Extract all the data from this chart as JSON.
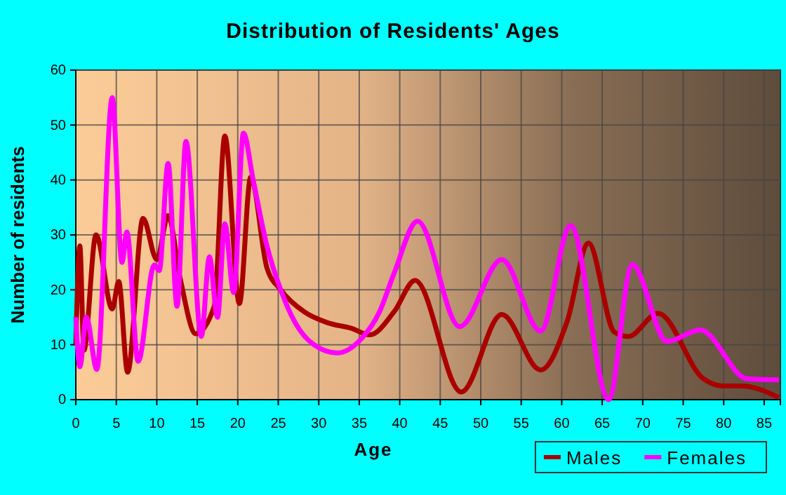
{
  "chart_data": {
    "type": "line",
    "title": "Distribution of Residents' Ages",
    "xlabel": "Age",
    "ylabel": "Number of residents",
    "xlim": [
      0,
      87
    ],
    "xticks": [
      0,
      5,
      10,
      15,
      20,
      25,
      30,
      35,
      40,
      45,
      50,
      55,
      60,
      65,
      70,
      75,
      80,
      85
    ],
    "ylim": [
      0,
      60
    ],
    "yticks": [
      0,
      10,
      20,
      30,
      40,
      50,
      60
    ],
    "grid": true,
    "legend": "bottom right",
    "series": [
      {
        "name": "Males",
        "color": "#aa0000",
        "x": [
          0,
          0.5,
          1,
          2.5,
          4.5,
          5.3,
          6.4,
          8.3,
          10,
          11.4,
          12.9,
          14.8,
          17.1,
          18.4,
          20.2,
          21.6,
          23.6,
          25.3,
          28.2,
          31.1,
          34,
          36.3,
          39.3,
          41.9,
          47.6,
          52.6,
          57.4,
          60.7,
          63.3,
          66.5,
          68.2,
          71.9,
          77.5,
          79.8,
          82.2,
          86.8
        ],
        "values": [
          10,
          28,
          9,
          30,
          16.5,
          21.5,
          5,
          33,
          25.5,
          33.5,
          22,
          12,
          17,
          48,
          17.5,
          40.5,
          24,
          20,
          16,
          14,
          13,
          11.8,
          16,
          21.7,
          1.4,
          15.5,
          5.4,
          14.4,
          28.5,
          12.3,
          11.5,
          15.7,
          3.8,
          2.5,
          2.5,
          0.4
        ]
      },
      {
        "name": "Females",
        "color": "#ff00ff",
        "x": [
          0,
          0.5,
          1.3,
          2.6,
          4.5,
          5.7,
          6.3,
          7.7,
          9.7,
          10.3,
          11.4,
          12.5,
          13.6,
          15.5,
          16.5,
          17.5,
          18.4,
          19.5,
          20.7,
          21.9,
          23.6,
          25.3,
          27.1,
          29.4,
          32.3,
          35.2,
          37.5,
          39.3,
          42.2,
          47.4,
          52.6,
          57.4,
          61.1,
          65.8,
          68.7,
          73,
          77.1,
          82.9,
          86.8
        ],
        "values": [
          15,
          6,
          15,
          5.5,
          55,
          25,
          30.5,
          7,
          24.5,
          23.5,
          43,
          17,
          47,
          11.5,
          26,
          15,
          32,
          19.5,
          48.5,
          40,
          28,
          20,
          14,
          10,
          8.5,
          11,
          16,
          23,
          32.5,
          13.3,
          25.5,
          12.5,
          31.7,
          0,
          24.6,
          10.6,
          12.7,
          3.8,
          3.6
        ]
      }
    ]
  }
}
